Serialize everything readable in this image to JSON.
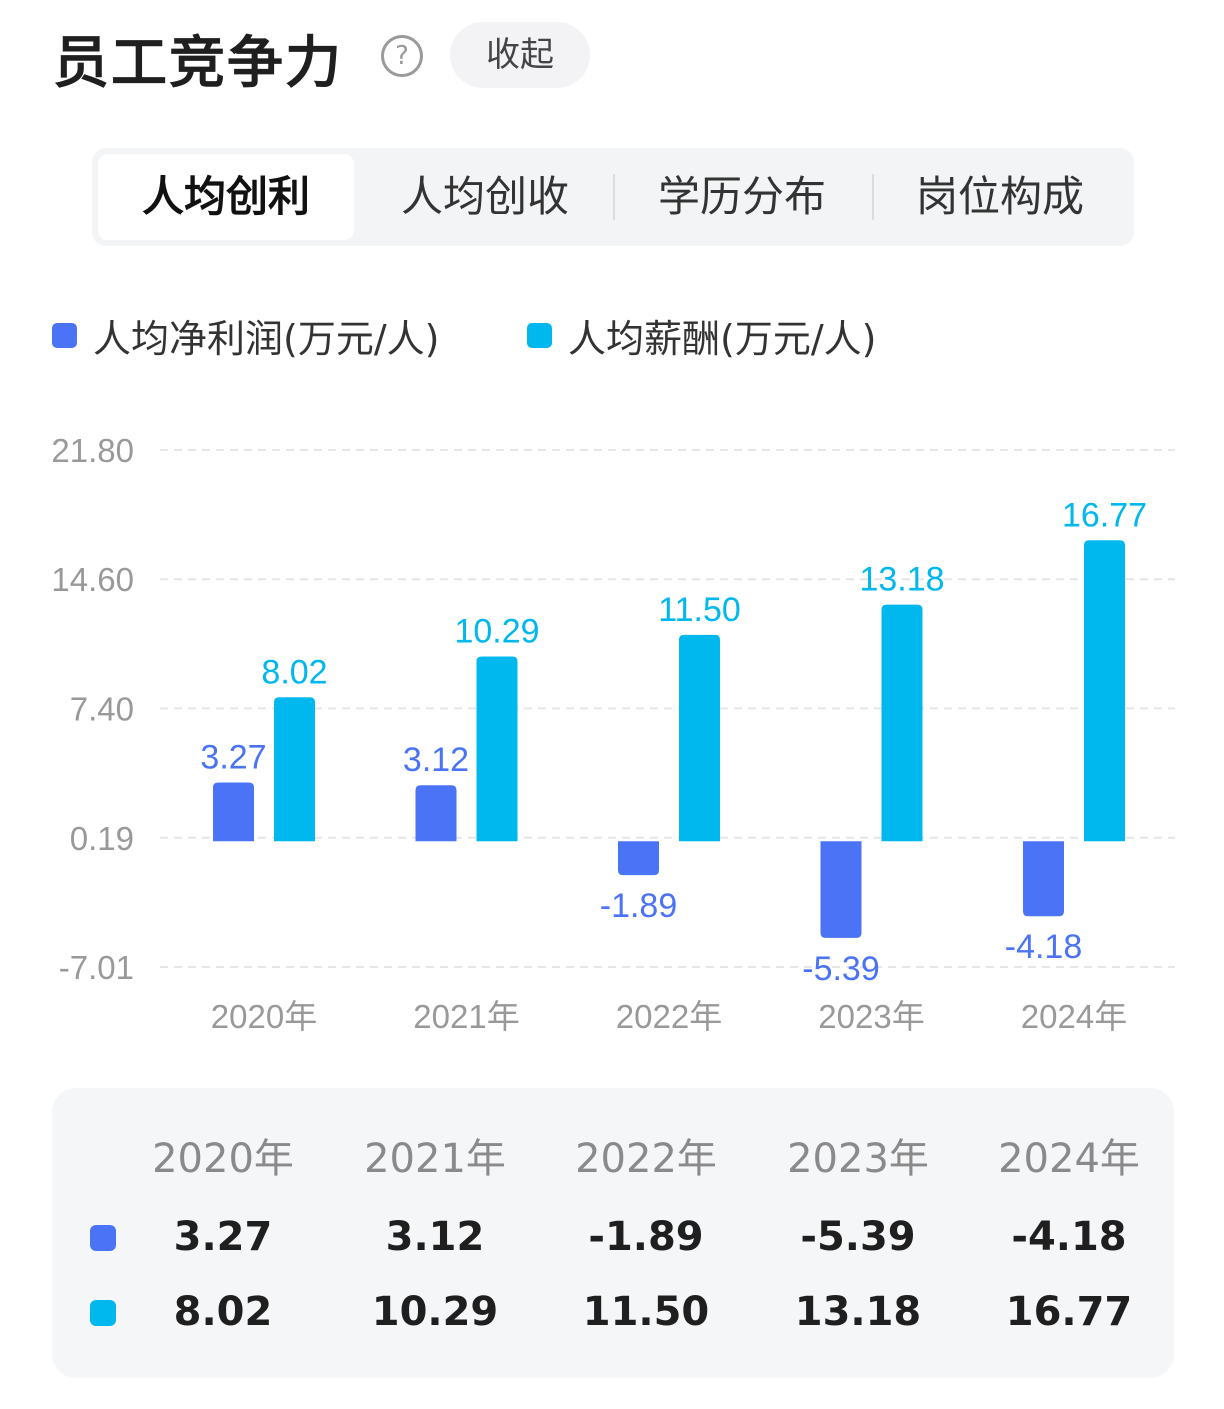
{
  "header": {
    "title": "员工竞争力",
    "help_icon": "?",
    "collapse_label": "收起"
  },
  "tabs": [
    {
      "label": "人均创利",
      "active": true
    },
    {
      "label": "人均创收"
    },
    {
      "label": "学历分布"
    },
    {
      "label": "岗位构成"
    }
  ],
  "colors": {
    "profit": "#4a74f5",
    "salary": "#00b7ee"
  },
  "chart_data": {
    "type": "bar",
    "categories": [
      "2020年",
      "2021年",
      "2022年",
      "2023年",
      "2024年"
    ],
    "series": [
      {
        "name": "人均净利润(万元/人)",
        "values": [
          3.27,
          3.12,
          -1.89,
          -5.39,
          -4.18
        ],
        "labels": [
          "3.27",
          "3.12",
          "-1.89",
          "-5.39",
          "-4.18"
        ]
      },
      {
        "name": "人均薪酬(万元/人)",
        "values": [
          8.02,
          10.29,
          11.5,
          13.18,
          16.77
        ],
        "labels": [
          "8.02",
          "10.29",
          "11.50",
          "13.18",
          "16.77"
        ]
      }
    ],
    "yticks": [
      "21.80",
      "14.60",
      "7.40",
      "0.19",
      "-7.01"
    ],
    "ytick_values": [
      21.8,
      14.6,
      7.4,
      0.19,
      -7.01
    ],
    "ylim": [
      -7.01,
      21.8
    ],
    "grid": true,
    "legend": "top-left"
  },
  "table": {
    "headers": [
      "2020年",
      "2021年",
      "2022年",
      "2023年",
      "2024年"
    ],
    "rows": [
      [
        "3.27",
        "3.12",
        "-1.89",
        "-5.39",
        "-4.18"
      ],
      [
        "8.02",
        "10.29",
        "11.50",
        "13.18",
        "16.77"
      ]
    ]
  }
}
